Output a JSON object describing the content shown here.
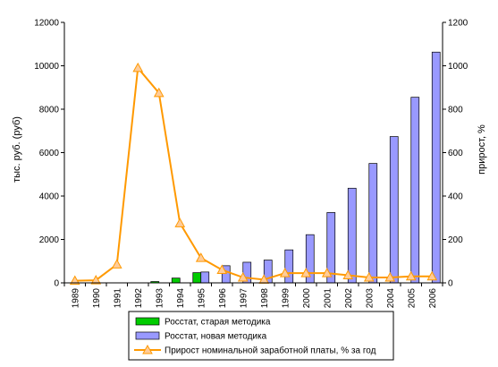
{
  "chart_data": {
    "type": "bar",
    "categories": [
      "1989",
      "1990",
      "1991",
      "1992",
      "1993",
      "1994",
      "1995",
      "1996",
      "1997",
      "1998",
      "1999",
      "2000",
      "2001",
      "2002",
      "2003",
      "2004",
      "2005",
      "2006"
    ],
    "series": [
      {
        "name": "Росстат, старая методика",
        "type": "bar",
        "axis": "left",
        "color": "#00cc00",
        "values": [
          null,
          null,
          null,
          null,
          60,
          220,
          470,
          null,
          null,
          null,
          null,
          null,
          null,
          null,
          null,
          null,
          null,
          null
        ]
      },
      {
        "name": "Росстат, новая методика",
        "type": "bar",
        "axis": "left",
        "color": "#9999ff",
        "values": [
          null,
          null,
          null,
          null,
          null,
          null,
          500,
          790,
          950,
          1050,
          1520,
          2220,
          3240,
          4360,
          5500,
          6740,
          8550,
          10630
        ]
      },
      {
        "name": "Прирост номинальной заработной платы, % за год",
        "type": "line",
        "axis": "right",
        "color": "#ff9900",
        "values": [
          10,
          12,
          85,
          990,
          875,
          275,
          115,
          60,
          25,
          15,
          45,
          45,
          45,
          35,
          25,
          25,
          30,
          30
        ]
      }
    ],
    "ylabel": "тыс. руб. (руб)",
    "y2label": "прирост, %",
    "ylim": [
      0,
      12000
    ],
    "y2lim": [
      0,
      1200
    ],
    "yticks": [
      "0",
      "2000",
      "4000",
      "6000",
      "8000",
      "10000",
      "12000"
    ],
    "y2ticks": [
      "0",
      "200",
      "400",
      "600",
      "800",
      "1000",
      "1200"
    ],
    "grid": false,
    "legend_position": "bottom"
  }
}
